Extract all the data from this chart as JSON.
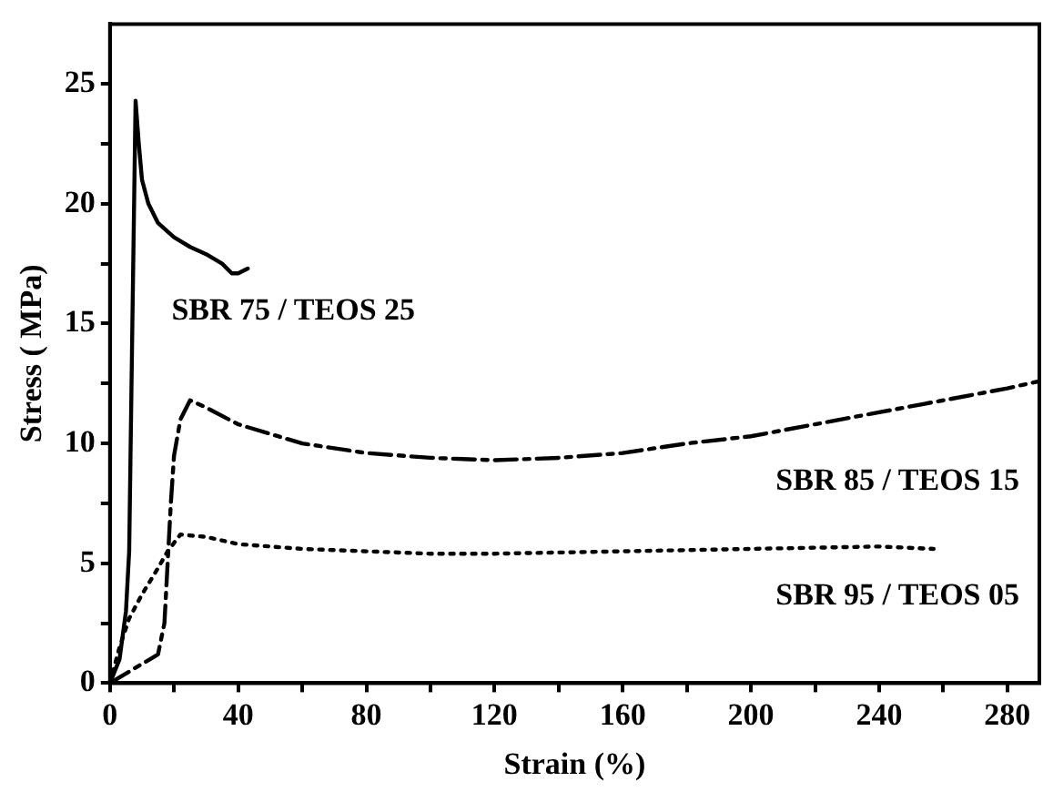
{
  "chart_data": {
    "type": "line",
    "xlabel": "Strain (%)",
    "ylabel": "Stress ( MPa)",
    "xlim": [
      0,
      290
    ],
    "ylim": [
      0,
      27.5
    ],
    "xticks": [
      0,
      {
        "value": 20,
        "label": null
      },
      40,
      {
        "value": 60,
        "label": null
      },
      80,
      {
        "value": 100,
        "label": null
      },
      120,
      {
        "value": 140,
        "label": null
      },
      160,
      {
        "value": 180,
        "label": null
      },
      200,
      {
        "value": 220,
        "label": null
      },
      240,
      {
        "value": 260,
        "label": null
      },
      280
    ],
    "yticks": [
      0,
      {
        "value": 2.5,
        "label": null
      },
      5,
      {
        "value": 7.5,
        "label": null
      },
      10,
      {
        "value": 12.5,
        "label": null
      },
      15,
      {
        "value": 17.5,
        "label": null
      },
      20,
      {
        "value": 22.5,
        "label": null
      },
      25
    ],
    "grid": false,
    "legend": false,
    "marker": "none",
    "series": [
      {
        "name": "SBR 75 / TEOS 25",
        "color": "#000000",
        "line_style": "solid",
        "x": [
          0,
          3,
          5,
          6,
          7,
          8,
          9,
          10,
          12,
          15,
          20,
          25,
          30,
          35,
          38,
          40,
          43
        ],
        "values": [
          0,
          1,
          3,
          5.5,
          15,
          24.3,
          22.5,
          21,
          20,
          19.2,
          18.6,
          18.2,
          17.9,
          17.5,
          17.1,
          17.1,
          17.3
        ]
      },
      {
        "name": "SBR 85 / TEOS 15",
        "color": "#000000",
        "line_style": "dashed",
        "x": [
          0,
          5,
          10,
          15,
          17,
          18,
          19,
          20,
          22,
          25,
          30,
          40,
          60,
          80,
          100,
          120,
          140,
          160,
          180,
          200,
          220,
          240,
          260,
          280,
          290
        ],
        "values": [
          0,
          0.4,
          0.8,
          1.2,
          2.5,
          5,
          7.5,
          9.5,
          11,
          11.8,
          11.5,
          10.8,
          10,
          9.6,
          9.4,
          9.3,
          9.4,
          9.6,
          10,
          10.3,
          10.8,
          11.3,
          11.8,
          12.3,
          12.6
        ]
      },
      {
        "name": "SBR 95 / TEOS 05",
        "color": "#000000",
        "line_style": "dotted",
        "x": [
          0,
          3,
          6,
          10,
          15,
          18,
          22,
          30,
          40,
          60,
          80,
          100,
          120,
          160,
          200,
          240,
          257
        ],
        "values": [
          0,
          1.5,
          2.7,
          3.7,
          4.8,
          5.5,
          6.2,
          6.1,
          5.8,
          5.6,
          5.5,
          5.4,
          5.4,
          5.5,
          5.6,
          5.7,
          5.6
        ]
      }
    ]
  }
}
